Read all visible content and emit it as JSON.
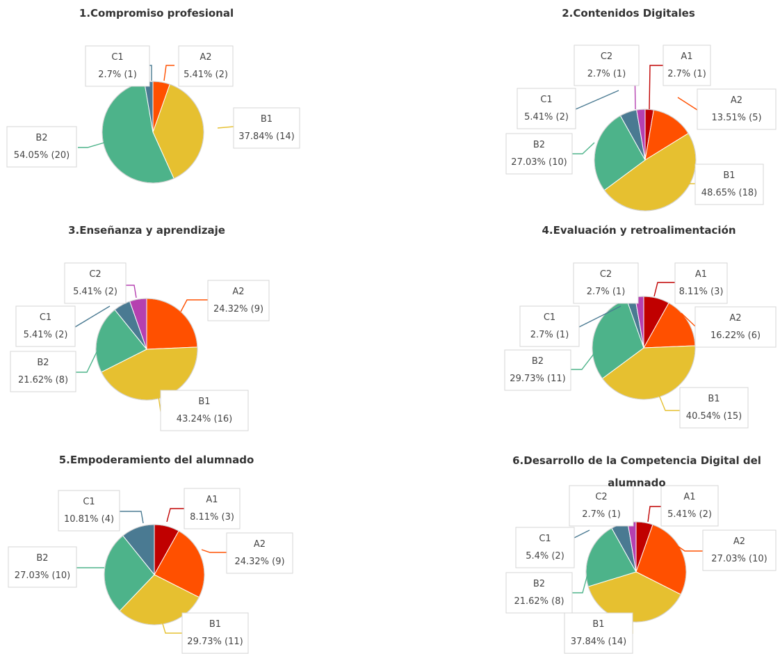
{
  "colors": {
    "A1": "#C00000",
    "A2": "#FF5000",
    "B1": "#E6C030",
    "B2": "#4DB38A",
    "C1": "#4A7A92",
    "C2": "#B540B0"
  },
  "chart_data": [
    {
      "type": "pie",
      "title": "1.Compromiso profesional",
      "slices": [
        {
          "name": "A2",
          "value": 2,
          "label": "5.41% (2)"
        },
        {
          "name": "B1",
          "value": 14,
          "label": "37.84% (14)"
        },
        {
          "name": "B2",
          "value": 20,
          "label": "54.05% (20)"
        },
        {
          "name": "C1",
          "value": 1,
          "label": "2.7% (1)"
        }
      ]
    },
    {
      "type": "pie",
      "title": "2.Contenidos Digitales",
      "slices": [
        {
          "name": "A1",
          "value": 1,
          "label": "2.7% (1)"
        },
        {
          "name": "A2",
          "value": 5,
          "label": "13.51% (5)"
        },
        {
          "name": "B1",
          "value": 18,
          "label": "48.65% (18)"
        },
        {
          "name": "B2",
          "value": 10,
          "label": "27.03% (10)"
        },
        {
          "name": "C1",
          "value": 2,
          "label": "5.41% (2)"
        },
        {
          "name": "C2",
          "value": 1,
          "label": "2.7% (1)"
        }
      ]
    },
    {
      "type": "pie",
      "title": "3.Enseñanza y aprendizaje",
      "slices": [
        {
          "name": "A2",
          "value": 9,
          "label": "24.32% (9)"
        },
        {
          "name": "B1",
          "value": 16,
          "label": "43.24% (16)"
        },
        {
          "name": "B2",
          "value": 8,
          "label": "21.62% (8)"
        },
        {
          "name": "C1",
          "value": 2,
          "label": "5.41% (2)"
        },
        {
          "name": "C2",
          "value": 2,
          "label": "5.41% (2)"
        }
      ]
    },
    {
      "type": "pie",
      "title": "4.Evaluación y retroalimentación",
      "slices": [
        {
          "name": "A1",
          "value": 3,
          "label": "8.11% (3)"
        },
        {
          "name": "A2",
          "value": 6,
          "label": "16.22% (6)"
        },
        {
          "name": "B1",
          "value": 15,
          "label": "40.54% (15)"
        },
        {
          "name": "B2",
          "value": 11,
          "label": "29.73% (11)"
        },
        {
          "name": "C1",
          "value": 1,
          "label": "2.7% (1)"
        },
        {
          "name": "C2",
          "value": 1,
          "label": "2.7% (1)"
        }
      ]
    },
    {
      "type": "pie",
      "title": "5.Empoderamiento del alumnado",
      "slices": [
        {
          "name": "A1",
          "value": 3,
          "label": "8.11% (3)"
        },
        {
          "name": "A2",
          "value": 9,
          "label": "24.32% (9)"
        },
        {
          "name": "B1",
          "value": 11,
          "label": "29.73% (11)"
        },
        {
          "name": "B2",
          "value": 10,
          "label": "27.03% (10)"
        },
        {
          "name": "C1",
          "value": 4,
          "label": "10.81% (4)"
        }
      ]
    },
    {
      "type": "pie",
      "title": "6.Desarrollo de la Competencia Digital del alumnado",
      "slices": [
        {
          "name": "A1",
          "value": 2,
          "label": "5.41% (2)"
        },
        {
          "name": "A2",
          "value": 10,
          "label": "27.03% (10)"
        },
        {
          "name": "B1",
          "value": 14,
          "label": "37.84% (14)"
        },
        {
          "name": "B2",
          "value": 8,
          "label": "21.62% (8)"
        },
        {
          "name": "C1",
          "value": 2,
          "label": "5.4% (2)"
        },
        {
          "name": "C2",
          "value": 1,
          "label": "2.7% (1)"
        }
      ]
    }
  ]
}
